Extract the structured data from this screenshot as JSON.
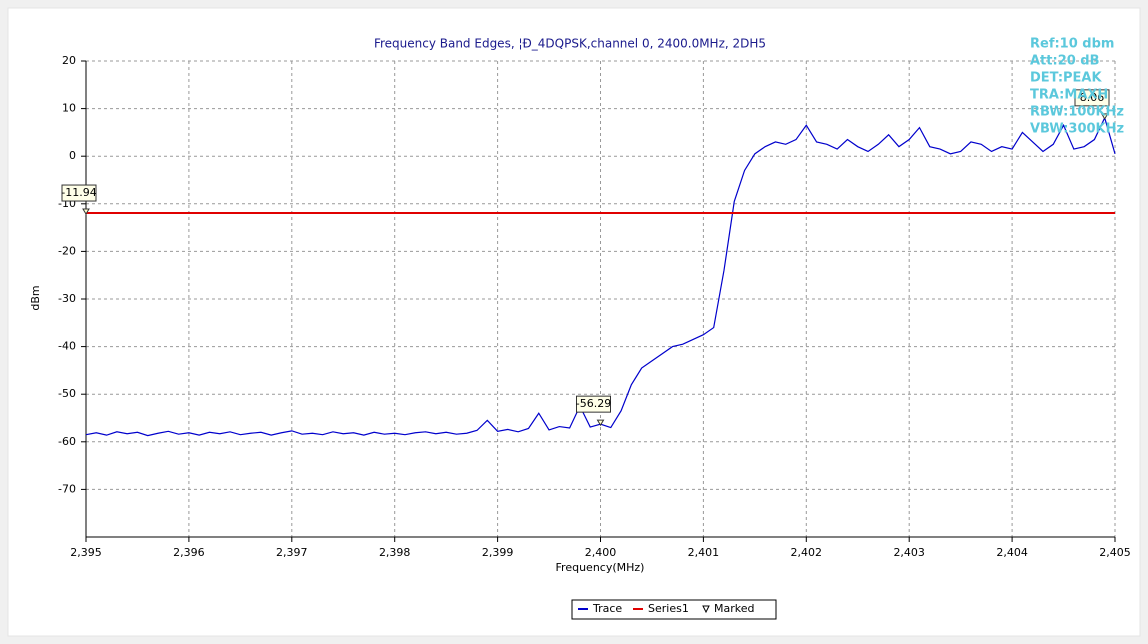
{
  "chart_data": {
    "type": "line",
    "title": "Frequency Band Edges, ¦Ð_4DQPSK,channel 0, 2400.0MHz, 2DH5",
    "x_label": "Frequency(MHz)",
    "y_label": "dBm",
    "xlim": [
      2395,
      2405
    ],
    "ylim": [
      -80,
      20
    ],
    "xticks": [
      {
        "value": 2395,
        "label": "2,395"
      },
      {
        "value": 2396,
        "label": "2,396"
      },
      {
        "value": 2397,
        "label": "2,397"
      },
      {
        "value": 2398,
        "label": "2,398"
      },
      {
        "value": 2399,
        "label": "2,399"
      },
      {
        "value": 2400,
        "label": "2,400"
      },
      {
        "value": 2401,
        "label": "2,401"
      },
      {
        "value": 2402,
        "label": "2,402"
      },
      {
        "value": 2403,
        "label": "2,403"
      },
      {
        "value": 2404,
        "label": "2,404"
      },
      {
        "value": 2405,
        "label": "2,405"
      }
    ],
    "yticks": [
      20,
      10,
      0,
      -10,
      -20,
      -30,
      -40,
      -50,
      -60,
      -70
    ],
    "grid": true,
    "info": [
      "Ref:10 dbm",
      "Att:20 dB",
      "DET:PEAK",
      "TRA:MAXH",
      "RBW:100KHz",
      "VBW:300KHz"
    ],
    "series": [
      {
        "name": "Trace",
        "color": "#0000cc",
        "x": [
          2395.0,
          2395.1,
          2395.2,
          2395.3,
          2395.4,
          2395.5,
          2395.6,
          2395.7,
          2395.8,
          2395.9,
          2396.0,
          2396.1,
          2396.2,
          2396.3,
          2396.4,
          2396.5,
          2396.6,
          2396.7,
          2396.8,
          2396.9,
          2397.0,
          2397.1,
          2397.2,
          2397.3,
          2397.4,
          2397.5,
          2397.6,
          2397.7,
          2397.8,
          2397.9,
          2398.0,
          2398.1,
          2398.2,
          2398.3,
          2398.4,
          2398.5,
          2398.6,
          2398.7,
          2398.8,
          2398.9,
          2399.0,
          2399.1,
          2399.2,
          2399.3,
          2399.4,
          2399.5,
          2399.6,
          2399.7,
          2399.8,
          2399.9,
          2400.0,
          2400.1,
          2400.2,
          2400.3,
          2400.4,
          2400.5,
          2400.6,
          2400.7,
          2400.8,
          2400.9,
          2401.0,
          2401.1,
          2401.2,
          2401.3,
          2401.4,
          2401.5,
          2401.6,
          2401.7,
          2401.8,
          2401.9,
          2402.0,
          2402.1,
          2402.2,
          2402.3,
          2402.4,
          2402.5,
          2402.6,
          2402.7,
          2402.8,
          2402.9,
          2403.0,
          2403.1,
          2403.2,
          2403.3,
          2403.4,
          2403.5,
          2403.6,
          2403.7,
          2403.8,
          2403.9,
          2404.0,
          2404.1,
          2404.2,
          2404.3,
          2404.4,
          2404.5,
          2404.6,
          2404.7,
          2404.8,
          2404.9,
          2405.0
        ],
        "values": [
          -58.5,
          -58.1,
          -58.6,
          -57.9,
          -58.3,
          -58.0,
          -58.7,
          -58.2,
          -57.8,
          -58.4,
          -58.1,
          -58.6,
          -58.0,
          -58.3,
          -57.9,
          -58.5,
          -58.2,
          -58.0,
          -58.6,
          -58.1,
          -57.7,
          -58.4,
          -58.2,
          -58.5,
          -57.9,
          -58.3,
          -58.1,
          -58.6,
          -58.0,
          -58.4,
          -58.2,
          -58.5,
          -58.1,
          -57.9,
          -58.3,
          -58.0,
          -58.4,
          -58.2,
          -57.6,
          -55.5,
          -57.8,
          -57.4,
          -57.9,
          -57.2,
          -54.0,
          -57.5,
          -56.8,
          -57.1,
          -52.5,
          -56.9,
          -56.3,
          -57.0,
          -53.5,
          -48.0,
          -44.5,
          -43.0,
          -41.5,
          -40.0,
          -39.5,
          -38.5,
          -37.5,
          -36.0,
          -24.0,
          -9.5,
          -3.0,
          0.5,
          2.0,
          3.0,
          2.5,
          3.5,
          6.5,
          3.0,
          2.5,
          1.5,
          3.5,
          2.0,
          1.0,
          2.5,
          4.5,
          2.0,
          3.5,
          6.0,
          2.0,
          1.5,
          0.5,
          1.0,
          3.0,
          2.5,
          1.0,
          2.0,
          1.5,
          5.0,
          3.0,
          1.0,
          2.5,
          6.5,
          1.5,
          2.0,
          3.5,
          8.06,
          0.5
        ]
      },
      {
        "name": "Series1",
        "color": "#e00000",
        "x": [
          2395,
          2405
        ],
        "values": [
          -11.94,
          -11.94
        ]
      }
    ],
    "markers": {
      "name": "Marked",
      "x": [
        2395,
        2400,
        2404.9
      ],
      "values": [
        -11.94,
        -56.29,
        8.06
      ]
    }
  }
}
